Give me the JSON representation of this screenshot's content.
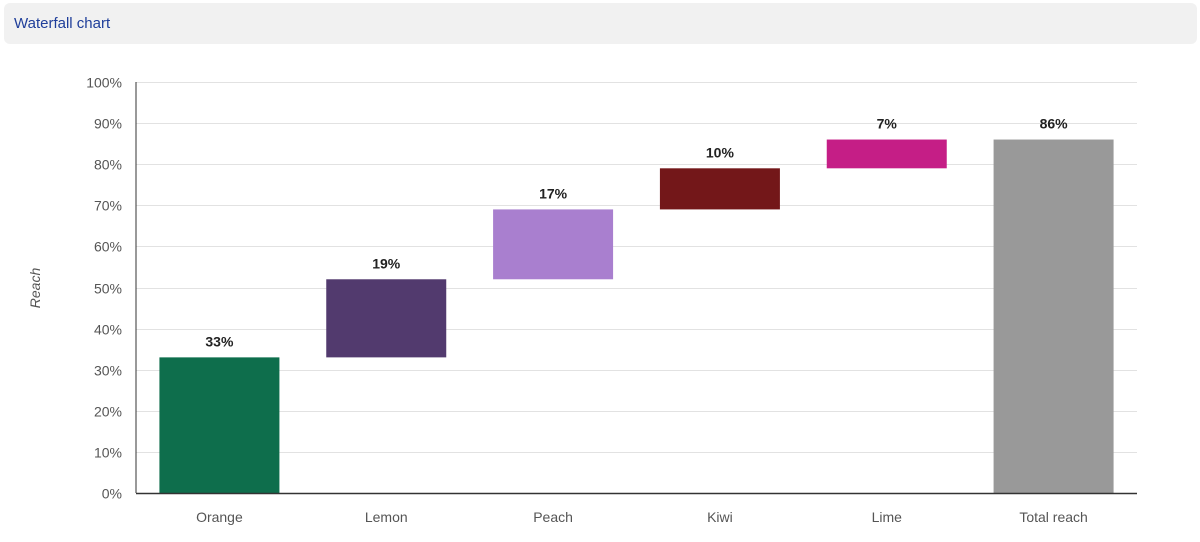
{
  "header": {
    "title": "Waterfall chart"
  },
  "chart_data": {
    "type": "waterfall",
    "ylabel": "Reach",
    "xlabel": "",
    "ylim": [
      0,
      100
    ],
    "y_unit": "%",
    "y_ticks": [
      "0%",
      "10%",
      "20%",
      "30%",
      "40%",
      "50%",
      "60%",
      "70%",
      "80%",
      "90%",
      "100%"
    ],
    "grid": true,
    "categories": [
      "Orange",
      "Lemon",
      "Peach",
      "Kiwi",
      "Lime",
      "Total reach"
    ],
    "values": [
      33,
      19,
      17,
      10,
      7,
      86
    ],
    "starts": [
      0,
      33,
      52,
      69,
      79,
      0
    ],
    "data_labels": [
      "33%",
      "19%",
      "17%",
      "10%",
      "7%",
      "86%"
    ],
    "colors": [
      "#0e6e4c",
      "#523a6e",
      "#a97fcf",
      "#731719",
      "#c51e86",
      "#999999"
    ]
  }
}
